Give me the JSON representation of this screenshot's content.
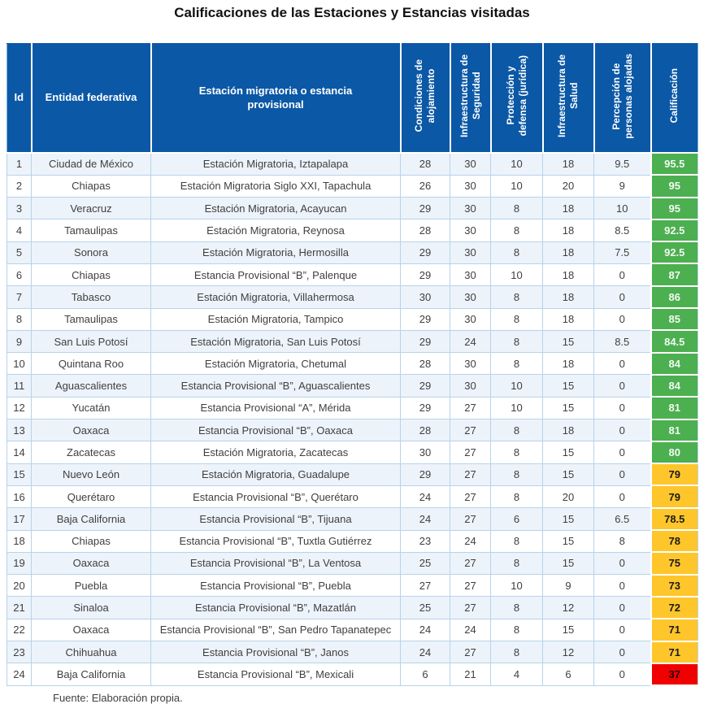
{
  "title": "Calificaciones de las Estaciones y Estancias visitadas",
  "header": {
    "id": "Id",
    "entidad": "Entidad federativa",
    "estacion": "Estación migratoria o estancia\nprovisional",
    "alojamiento": "Condiciones de\nalojamiento",
    "seguridad": "Infraestructura de\nSeguridad",
    "proteccion": "Protección y\ndefensa (jurídica)",
    "salud": "Infraestructura de\nSalud",
    "percepcion": "Percepción de\npersonas alojadas",
    "calificacion": "Calificación"
  },
  "rows": [
    {
      "id": 1,
      "entidad": "Ciudad de México",
      "estacion": "Estación Migratoria, Iztapalapa",
      "alojamiento": 28,
      "seguridad": 30,
      "proteccion": 10,
      "salud": 18,
      "percepcion": 9.5,
      "calificacion": 95.5,
      "nivel": "green"
    },
    {
      "id": 2,
      "entidad": "Chiapas",
      "estacion": "Estación Migratoria Siglo XXI, Tapachula",
      "alojamiento": 26,
      "seguridad": 30,
      "proteccion": 10,
      "salud": 20,
      "percepcion": 9,
      "calificacion": 95,
      "nivel": "green"
    },
    {
      "id": 3,
      "entidad": "Veracruz",
      "estacion": "Estación Migratoria, Acayucan",
      "alojamiento": 29,
      "seguridad": 30,
      "proteccion": 8,
      "salud": 18,
      "percepcion": 10,
      "calificacion": 95,
      "nivel": "green"
    },
    {
      "id": 4,
      "entidad": "Tamaulipas",
      "estacion": "Estación Migratoria, Reynosa",
      "alojamiento": 28,
      "seguridad": 30,
      "proteccion": 8,
      "salud": 18,
      "percepcion": 8.5,
      "calificacion": 92.5,
      "nivel": "green"
    },
    {
      "id": 5,
      "entidad": "Sonora",
      "estacion": "Estación Migratoria, Hermosilla",
      "alojamiento": 29,
      "seguridad": 30,
      "proteccion": 8,
      "salud": 18,
      "percepcion": 7.5,
      "calificacion": 92.5,
      "nivel": "green"
    },
    {
      "id": 6,
      "entidad": "Chiapas",
      "estacion": "Estancia Provisional “B”, Palenque",
      "alojamiento": 29,
      "seguridad": 30,
      "proteccion": 10,
      "salud": 18,
      "percepcion": 0,
      "calificacion": 87,
      "nivel": "green"
    },
    {
      "id": 7,
      "entidad": "Tabasco",
      "estacion": "Estación Migratoria, Villahermosa",
      "alojamiento": 30,
      "seguridad": 30,
      "proteccion": 8,
      "salud": 18,
      "percepcion": 0,
      "calificacion": 86,
      "nivel": "green"
    },
    {
      "id": 8,
      "entidad": "Tamaulipas",
      "estacion": "Estación Migratoria, Tampico",
      "alojamiento": 29,
      "seguridad": 30,
      "proteccion": 8,
      "salud": 18,
      "percepcion": 0,
      "calificacion": 85,
      "nivel": "green"
    },
    {
      "id": 9,
      "entidad": "San Luis Potosí",
      "estacion": "Estación Migratoria, San Luis Potosí",
      "alojamiento": 29,
      "seguridad": 24,
      "proteccion": 8,
      "salud": 15,
      "percepcion": 8.5,
      "calificacion": 84.5,
      "nivel": "green"
    },
    {
      "id": 10,
      "entidad": "Quintana Roo",
      "estacion": "Estación Migratoria, Chetumal",
      "alojamiento": 28,
      "seguridad": 30,
      "proteccion": 8,
      "salud": 18,
      "percepcion": 0,
      "calificacion": 84,
      "nivel": "green"
    },
    {
      "id": 11,
      "entidad": "Aguascalientes",
      "estacion": "Estancia Provisional “B”, Aguascalientes",
      "alojamiento": 29,
      "seguridad": 30,
      "proteccion": 10,
      "salud": 15,
      "percepcion": 0,
      "calificacion": 84,
      "nivel": "green"
    },
    {
      "id": 12,
      "entidad": "Yucatán",
      "estacion": "Estancia Provisional “A”, Mérida",
      "alojamiento": 29,
      "seguridad": 27,
      "proteccion": 10,
      "salud": 15,
      "percepcion": 0,
      "calificacion": 81,
      "nivel": "green"
    },
    {
      "id": 13,
      "entidad": "Oaxaca",
      "estacion": "Estancia Provisional “B”, Oaxaca",
      "alojamiento": 28,
      "seguridad": 27,
      "proteccion": 8,
      "salud": 18,
      "percepcion": 0,
      "calificacion": 81,
      "nivel": "green"
    },
    {
      "id": 14,
      "entidad": "Zacatecas",
      "estacion": "Estación Migratoria, Zacatecas",
      "alojamiento": 30,
      "seguridad": 27,
      "proteccion": 8,
      "salud": 15,
      "percepcion": 0,
      "calificacion": 80,
      "nivel": "green"
    },
    {
      "id": 15,
      "entidad": "Nuevo León",
      "estacion": "Estación Migratoria, Guadalupe",
      "alojamiento": 29,
      "seguridad": 27,
      "proteccion": 8,
      "salud": 15,
      "percepcion": 0,
      "calificacion": 79,
      "nivel": "yellow"
    },
    {
      "id": 16,
      "entidad": "Querétaro",
      "estacion": "Estancia Provisional “B”, Querétaro",
      "alojamiento": 24,
      "seguridad": 27,
      "proteccion": 8,
      "salud": 20,
      "percepcion": 0,
      "calificacion": 79,
      "nivel": "yellow"
    },
    {
      "id": 17,
      "entidad": "Baja California",
      "estacion": "Estancia Provisional “B”, Tijuana",
      "alojamiento": 24,
      "seguridad": 27,
      "proteccion": 6,
      "salud": 15,
      "percepcion": 6.5,
      "calificacion": 78.5,
      "nivel": "yellow"
    },
    {
      "id": 18,
      "entidad": "Chiapas",
      "estacion": "Estancia Provisional “B”, Tuxtla Gutiérrez",
      "alojamiento": 23,
      "seguridad": 24,
      "proteccion": 8,
      "salud": 15,
      "percepcion": 8,
      "calificacion": 78,
      "nivel": "yellow"
    },
    {
      "id": 19,
      "entidad": "Oaxaca",
      "estacion": "Estancia Provisional “B”, La Ventosa",
      "alojamiento": 25,
      "seguridad": 27,
      "proteccion": 8,
      "salud": 15,
      "percepcion": 0,
      "calificacion": 75,
      "nivel": "yellow"
    },
    {
      "id": 20,
      "entidad": "Puebla",
      "estacion": "Estancia Provisional “B”, Puebla",
      "alojamiento": 27,
      "seguridad": 27,
      "proteccion": 10,
      "salud": 9,
      "percepcion": 0,
      "calificacion": 73,
      "nivel": "yellow"
    },
    {
      "id": 21,
      "entidad": "Sinaloa",
      "estacion": "Estancia Provisional “B”, Mazatlán",
      "alojamiento": 25,
      "seguridad": 27,
      "proteccion": 8,
      "salud": 12,
      "percepcion": 0,
      "calificacion": 72,
      "nivel": "yellow"
    },
    {
      "id": 22,
      "entidad": "Oaxaca",
      "estacion": "Estancia Provisional “B”, San Pedro Tapanatepec",
      "alojamiento": 24,
      "seguridad": 24,
      "proteccion": 8,
      "salud": 15,
      "percepcion": 0,
      "calificacion": 71,
      "nivel": "yellow"
    },
    {
      "id": 23,
      "entidad": "Chihuahua",
      "estacion": "Estancia Provisional “B”, Janos",
      "alojamiento": 24,
      "seguridad": 27,
      "proteccion": 8,
      "salud": 12,
      "percepcion": 0,
      "calificacion": 71,
      "nivel": "yellow"
    },
    {
      "id": 24,
      "entidad": "Baja California",
      "estacion": "Estancia Provisional “B”, Mexicali",
      "alojamiento": 6,
      "seguridad": 21,
      "proteccion": 4,
      "salud": 6,
      "percepcion": 0,
      "calificacion": 37,
      "nivel": "red"
    }
  ],
  "footer": "Fuente: Elaboración propia.",
  "colors": {
    "header_blue": "#0b58a6",
    "score_green": "#4caf50",
    "score_yellow": "#ffc62b",
    "score_red": "#f00000",
    "row_alt": "#edf3fa",
    "grid_border": "#b7d3eb"
  }
}
